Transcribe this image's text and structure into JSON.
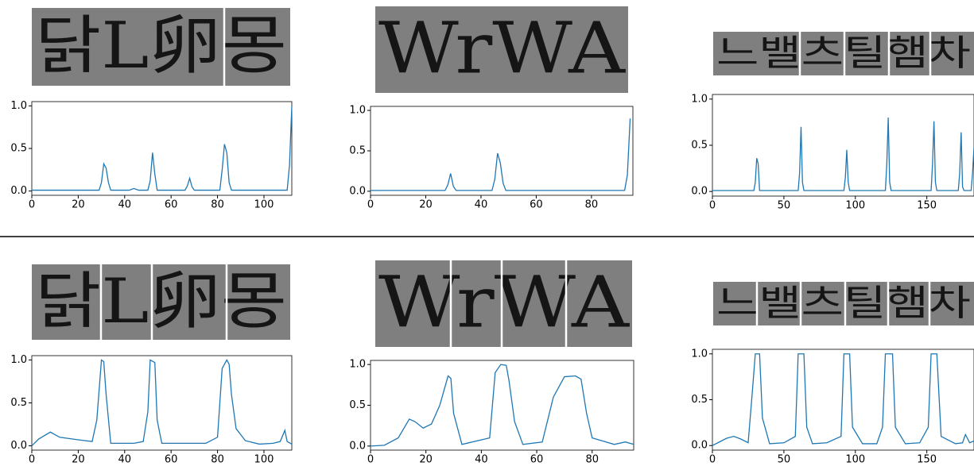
{
  "chart_data": [
    {
      "type": "line",
      "annotation": "닭L卵몽",
      "color": "#1f77b4",
      "x": [
        0,
        29,
        30,
        31,
        32,
        33,
        34,
        42,
        44,
        46,
        50,
        51,
        52,
        53,
        54,
        66,
        67,
        68,
        69,
        70,
        81,
        82,
        83,
        84,
        85,
        86,
        110,
        111,
        112
      ],
      "values": [
        0.01,
        0.01,
        0.1,
        0.32,
        0.27,
        0.1,
        0.01,
        0.01,
        0.03,
        0.01,
        0.01,
        0.12,
        0.45,
        0.2,
        0.01,
        0.01,
        0.06,
        0.15,
        0.05,
        0.01,
        0.01,
        0.25,
        0.55,
        0.45,
        0.1,
        0.01,
        0.01,
        0.3,
        1.0
      ],
      "xlim": [
        0,
        112
      ],
      "xticks": [
        0,
        20,
        40,
        60,
        80,
        100
      ],
      "ylim": [
        -0.05,
        1.05
      ],
      "yticks": [
        {
          "value": 0,
          "label": "0.0"
        },
        {
          "value": 0.5,
          "label": "0.5"
        },
        {
          "value": 1,
          "label": "1.0"
        }
      ]
    },
    {
      "type": "line",
      "annotation": "WrWA",
      "color": "#1f77b4",
      "x": [
        0,
        27,
        28,
        29,
        30,
        31,
        44,
        45,
        46,
        47,
        48,
        49,
        92,
        93,
        94
      ],
      "values": [
        0.01,
        0.01,
        0.08,
        0.22,
        0.06,
        0.01,
        0.01,
        0.15,
        0.47,
        0.35,
        0.1,
        0.01,
        0.01,
        0.2,
        0.9
      ],
      "xlim": [
        0,
        95
      ],
      "xticks": [
        0,
        20,
        40,
        60,
        80
      ],
      "ylim": [
        -0.05,
        1.05
      ],
      "yticks": [
        {
          "value": 0,
          "label": "0.0"
        },
        {
          "value": 0.5,
          "label": "0.5"
        },
        {
          "value": 1,
          "label": "1.0"
        }
      ]
    },
    {
      "type": "line",
      "annotation": "느밸츠틸햄차",
      "color": "#1f77b4",
      "x": [
        0,
        29,
        30,
        31,
        32,
        33,
        60,
        61,
        62,
        63,
        64,
        92,
        93,
        94,
        95,
        96,
        121,
        122,
        123,
        124,
        125,
        153,
        154,
        155,
        156,
        157,
        172,
        173,
        174,
        175,
        176,
        181,
        182,
        183
      ],
      "values": [
        0.01,
        0.01,
        0.1,
        0.36,
        0.3,
        0.01,
        0.01,
        0.2,
        0.7,
        0.1,
        0.01,
        0.01,
        0.15,
        0.45,
        0.1,
        0.01,
        0.01,
        0.3,
        0.8,
        0.1,
        0.01,
        0.01,
        0.3,
        0.76,
        0.1,
        0.01,
        0.01,
        0.2,
        0.64,
        0.05,
        0.01,
        0.01,
        0.2,
        0.48
      ],
      "xlim": [
        0,
        183
      ],
      "xticks": [
        0,
        50,
        100,
        150
      ],
      "ylim": [
        -0.05,
        1.05
      ],
      "yticks": [
        {
          "value": 0,
          "label": "0.0"
        },
        {
          "value": 0.5,
          "label": "0.5"
        },
        {
          "value": 1,
          "label": "1.0"
        }
      ]
    },
    {
      "type": "line",
      "annotation": "닭L卵몽",
      "color": "#1f77b4",
      "x": [
        0,
        3,
        8,
        12,
        20,
        26,
        28,
        30,
        31,
        32,
        34,
        44,
        48,
        50,
        51,
        53,
        54,
        56,
        65,
        75,
        80,
        82,
        84,
        85,
        86,
        88,
        92,
        98,
        104,
        107,
        109,
        110,
        112
      ],
      "values": [
        0,
        0.08,
        0.16,
        0.1,
        0.07,
        0.05,
        0.3,
        1.0,
        0.98,
        0.6,
        0.03,
        0.03,
        0.05,
        0.4,
        1.0,
        0.97,
        0.3,
        0.03,
        0.03,
        0.03,
        0.1,
        0.9,
        1.0,
        0.95,
        0.6,
        0.2,
        0.06,
        0.02,
        0.03,
        0.05,
        0.18,
        0.05,
        0.02
      ],
      "xlim": [
        0,
        112
      ],
      "xticks": [
        0,
        20,
        40,
        60,
        80,
        100
      ],
      "ylim": [
        -0.05,
        1.05
      ],
      "yticks": [
        {
          "value": 0,
          "label": "0.0"
        },
        {
          "value": 0.5,
          "label": "0.5"
        },
        {
          "value": 1,
          "label": "1.0"
        }
      ]
    },
    {
      "type": "line",
      "annotation": "WrWA",
      "color": "#1f77b4",
      "x": [
        0,
        5,
        10,
        14,
        16,
        19,
        22,
        25,
        28,
        29,
        30,
        33,
        43,
        45,
        47,
        49,
        50,
        52,
        55,
        62,
        66,
        70,
        74,
        76,
        78,
        80,
        88,
        92,
        95
      ],
      "values": [
        0,
        0.01,
        0.1,
        0.33,
        0.3,
        0.22,
        0.27,
        0.5,
        0.86,
        0.83,
        0.4,
        0.02,
        0.1,
        0.9,
        1.0,
        0.99,
        0.8,
        0.3,
        0.02,
        0.05,
        0.6,
        0.85,
        0.86,
        0.82,
        0.4,
        0.1,
        0.02,
        0.05,
        0.02
      ],
      "xlim": [
        0,
        95
      ],
      "xticks": [
        0,
        20,
        40,
        60,
        80
      ],
      "ylim": [
        -0.05,
        1.05
      ],
      "yticks": [
        {
          "value": 0,
          "label": "0.0"
        },
        {
          "value": 0.5,
          "label": "0.5"
        },
        {
          "value": 1,
          "label": "1.0"
        }
      ]
    },
    {
      "type": "line",
      "annotation": "느밸츠틸햄차",
      "color": "#1f77b4",
      "x": [
        0,
        5,
        10,
        15,
        20,
        25,
        28,
        30,
        33,
        35,
        40,
        50,
        58,
        60,
        64,
        66,
        70,
        80,
        90,
        92,
        96,
        98,
        105,
        115,
        119,
        121,
        126,
        128,
        135,
        145,
        151,
        153,
        157,
        160,
        170,
        175,
        177,
        180,
        183
      ],
      "values": [
        0,
        0.04,
        0.08,
        0.1,
        0.07,
        0.03,
        0.6,
        1.0,
        1.0,
        0.3,
        0.02,
        0.03,
        0.1,
        1.0,
        1.0,
        0.2,
        0.02,
        0.03,
        0.1,
        1.0,
        1.0,
        0.2,
        0.02,
        0.02,
        0.2,
        1.0,
        1.0,
        0.2,
        0.02,
        0.03,
        0.2,
        1.0,
        1.0,
        0.1,
        0.02,
        0.03,
        0.12,
        0.03,
        0.05
      ],
      "xlim": [
        0,
        183
      ],
      "xticks": [
        0,
        50,
        100,
        150
      ],
      "ylim": [
        -0.05,
        1.05
      ],
      "yticks": [
        {
          "value": 0,
          "label": "0.0"
        },
        {
          "value": 0.5,
          "label": "0.5"
        },
        {
          "value": 1,
          "label": "1.0"
        }
      ]
    }
  ]
}
